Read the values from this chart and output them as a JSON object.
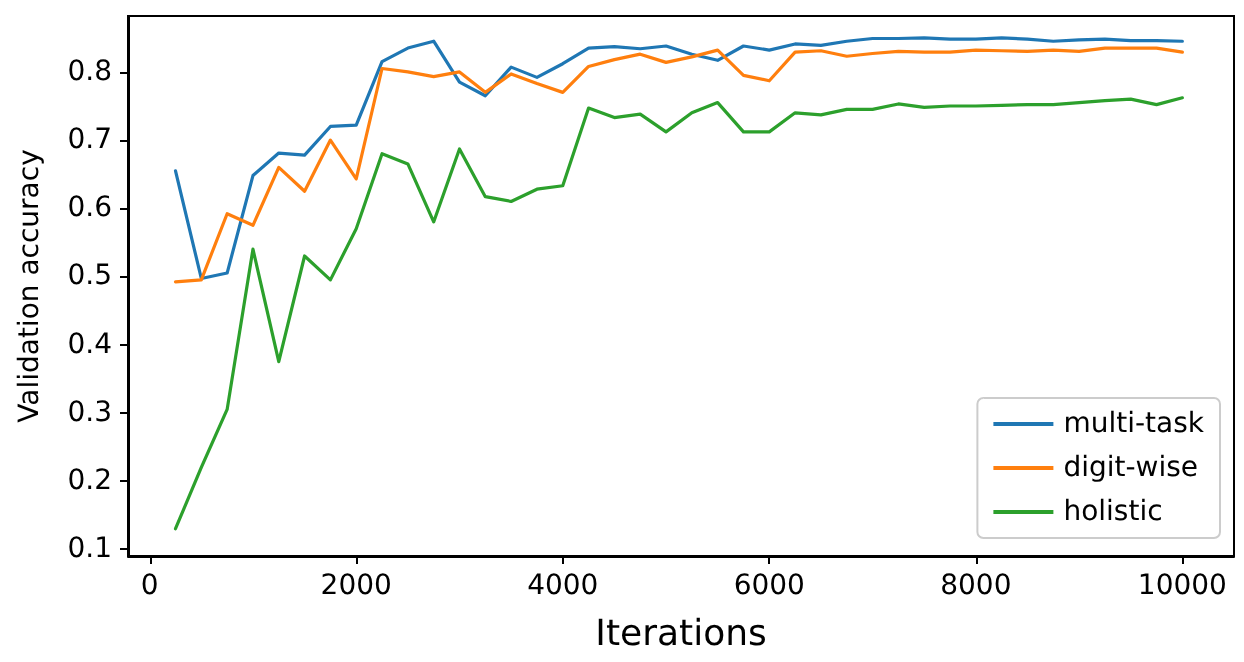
{
  "chart_data": {
    "type": "line",
    "xlabel": "Iterations",
    "ylabel": "Validation accuracy",
    "x": [
      250,
      500,
      750,
      1000,
      1250,
      1500,
      1750,
      2000,
      2250,
      2500,
      2750,
      3000,
      3250,
      3500,
      3750,
      4000,
      4250,
      4500,
      4750,
      5000,
      5250,
      5500,
      5750,
      6000,
      6250,
      6500,
      6750,
      7000,
      7250,
      7500,
      7750,
      8000,
      8250,
      8500,
      8750,
      9000,
      9250,
      9500,
      9750,
      10000
    ],
    "series": [
      {
        "name": "multi-task",
        "color": "#1f77b4",
        "values": [
          0.655,
          0.497,
          0.505,
          0.648,
          0.681,
          0.678,
          0.72,
          0.722,
          0.815,
          0.835,
          0.845,
          0.785,
          0.765,
          0.807,
          0.792,
          0.812,
          0.835,
          0.837,
          0.834,
          0.838,
          0.826,
          0.817,
          0.838,
          0.832,
          0.841,
          0.839,
          0.845,
          0.849,
          0.849,
          0.85,
          0.848,
          0.848,
          0.85,
          0.848,
          0.845,
          0.847,
          0.848,
          0.846,
          0.846,
          0.845
        ]
      },
      {
        "name": "digit-wise",
        "color": "#ff7f0e",
        "values": [
          0.492,
          0.495,
          0.592,
          0.575,
          0.66,
          0.625,
          0.7,
          0.643,
          0.805,
          0.8,
          0.793,
          0.8,
          0.77,
          0.797,
          0.783,
          0.77,
          0.808,
          0.818,
          0.826,
          0.814,
          0.822,
          0.832,
          0.795,
          0.787,
          0.829,
          0.831,
          0.823,
          0.827,
          0.83,
          0.829,
          0.829,
          0.832,
          0.831,
          0.83,
          0.832,
          0.83,
          0.835,
          0.835,
          0.835,
          0.829
        ]
      },
      {
        "name": "holistic",
        "color": "#2ca02c",
        "values": [
          0.13,
          0.22,
          0.305,
          0.54,
          0.375,
          0.53,
          0.495,
          0.57,
          0.68,
          0.665,
          0.58,
          0.687,
          0.617,
          0.61,
          0.628,
          0.633,
          0.747,
          0.733,
          0.738,
          0.712,
          0.74,
          0.755,
          0.712,
          0.712,
          0.74,
          0.737,
          0.745,
          0.745,
          0.753,
          0.748,
          0.75,
          0.75,
          0.751,
          0.752,
          0.752,
          0.755,
          0.758,
          0.76,
          0.752,
          0.762
        ]
      }
    ],
    "xlim": [
      -210,
      10500
    ],
    "xticks": [
      0,
      2000,
      4000,
      6000,
      8000,
      10000
    ],
    "ylim": [
      0.09,
      0.882
    ],
    "yticks": [
      0.1,
      0.2,
      0.3,
      0.4,
      0.5,
      0.6,
      0.7,
      0.8
    ],
    "grid": false,
    "legend": "bottom right",
    "marker": "none",
    "line_style": "solid"
  }
}
